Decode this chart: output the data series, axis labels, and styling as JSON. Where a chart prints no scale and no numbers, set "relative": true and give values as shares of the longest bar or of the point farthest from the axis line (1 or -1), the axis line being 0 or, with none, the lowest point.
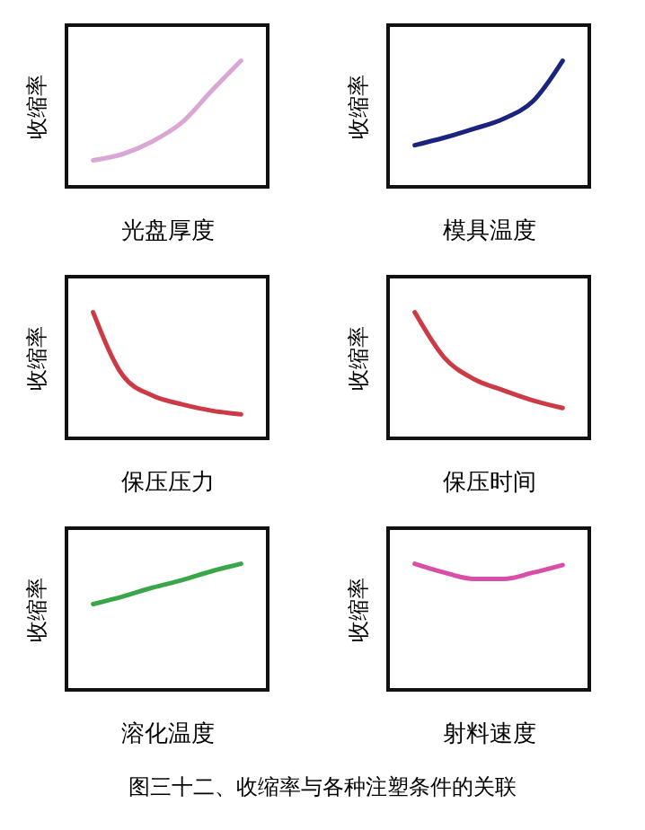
{
  "chart_data": [
    {
      "type": "line",
      "relative": true,
      "tick_labels": false,
      "xlabel": "光盘厚度",
      "ylabel": "收缩率",
      "categories": [
        null,
        null,
        null,
        null,
        null,
        null
      ],
      "series": [
        {
          "color": "#d9a6d6",
          "values": [
            0.21,
            0.26,
            0.36,
            0.51,
            0.76,
            1
          ]
        }
      ]
    },
    {
      "type": "line",
      "relative": true,
      "tick_labels": false,
      "xlabel": "模具温度",
      "ylabel": "收缩率",
      "categories": [
        null,
        null,
        null,
        null,
        null,
        null
      ],
      "series": [
        {
          "color": "#1a237e",
          "values": [
            0.33,
            0.39,
            0.46,
            0.54,
            0.68,
            1
          ]
        }
      ]
    },
    {
      "type": "line",
      "relative": true,
      "tick_labels": false,
      "xlabel": "保压压力",
      "ylabel": "收缩率",
      "categories": [
        null,
        null,
        null,
        null,
        null,
        null
      ],
      "series": [
        {
          "color": "#cc3a45",
          "values": [
            1,
            0.5,
            0.34,
            0.27,
            0.22,
            0.19
          ]
        }
      ]
    },
    {
      "type": "line",
      "relative": true,
      "tick_labels": false,
      "xlabel": "保压时间",
      "ylabel": "收缩率",
      "categories": [
        null,
        null,
        null,
        null,
        null,
        null
      ],
      "series": [
        {
          "color": "#cc3a45",
          "values": [
            1,
            0.64,
            0.47,
            0.38,
            0.3,
            0.24
          ]
        }
      ]
    },
    {
      "type": "line",
      "relative": true,
      "tick_labels": false,
      "xlabel": "溶化温度",
      "ylabel": "收缩率",
      "categories": [
        null,
        null,
        null,
        null,
        null,
        null
      ],
      "series": [
        {
          "color": "#3aa64a",
          "values": [
            0.68,
            0.74,
            0.81,
            0.87,
            0.94,
            1
          ]
        }
      ]
    },
    {
      "type": "line",
      "relative": true,
      "tick_labels": false,
      "xlabel": "射料速度",
      "ylabel": "收缩率",
      "categories": [
        null,
        null,
        null,
        null,
        null,
        null
      ],
      "series": [
        {
          "color": "#d94fa6",
          "values": [
            1,
            0.93,
            0.88,
            0.88,
            0.93,
            0.99
          ]
        }
      ],
      "annotations": [
        "图三十二、收缩率与各种注塑条件的关联"
      ]
    }
  ]
}
